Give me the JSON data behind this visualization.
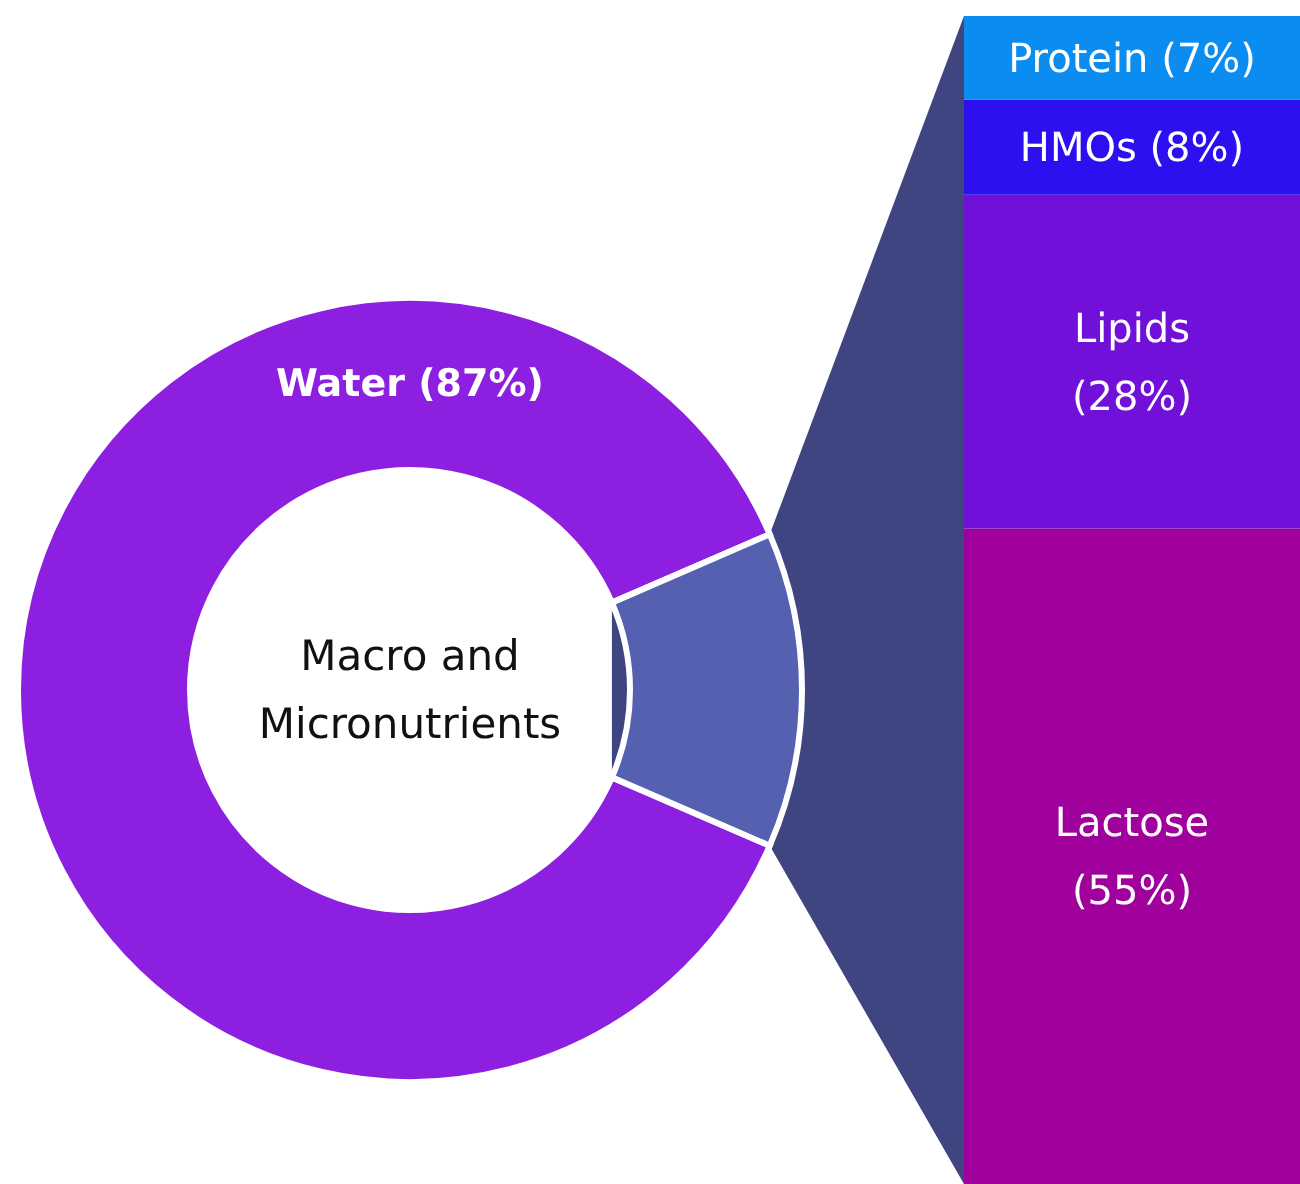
{
  "chart_data": [
    {
      "type": "donut",
      "categories": [
        "Water",
        null
      ],
      "values": [
        87,
        13
      ],
      "colors": [
        "#8c1fe0",
        "#5660b0"
      ],
      "value_labels": [
        "(87%)",
        null
      ],
      "annotations": [
        "Macro and Micronutrients"
      ],
      "legend": false
    },
    {
      "type": "bar",
      "stacked": true,
      "categories": [
        null
      ],
      "legend": false,
      "series": [
        {
          "name": "Lactose",
          "color": "#a0009c",
          "values": [
            55
          ],
          "value_labels": [
            "(55%)"
          ]
        },
        {
          "name": "Lipids",
          "color": "#7010d8",
          "values": [
            28
          ],
          "value_labels": [
            "(28%)"
          ]
        },
        {
          "name": "HMOs",
          "color": "#2c10f0",
          "values": [
            8
          ],
          "value_labels": [
            "(8%)"
          ]
        },
        {
          "name": "Protein",
          "color": "#0a8cf0",
          "values": [
            7
          ],
          "value_labels": [
            "(7%)"
          ]
        }
      ]
    }
  ]
}
